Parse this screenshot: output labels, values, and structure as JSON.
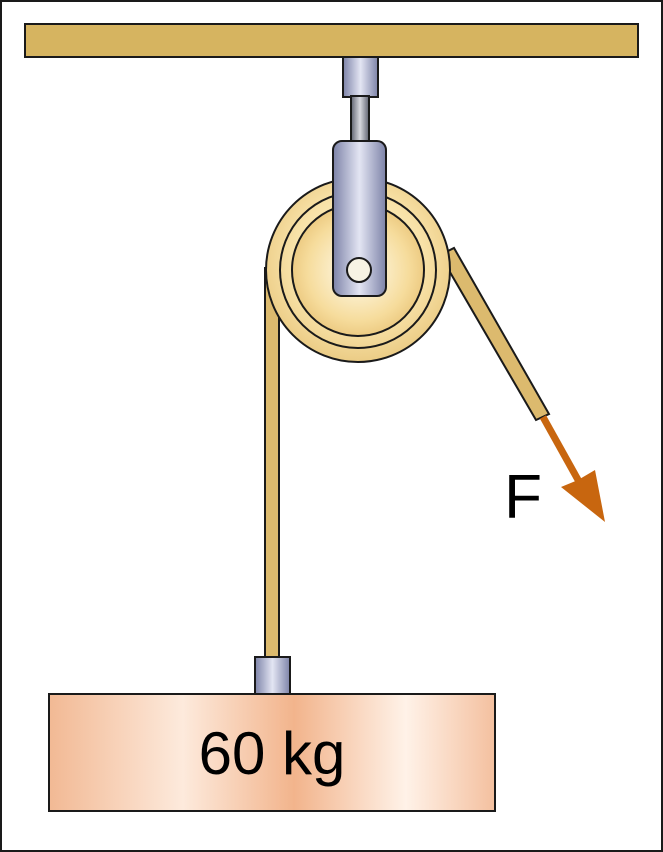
{
  "diagram": {
    "force_label": "F",
    "mass_label": "60 kg"
  },
  "colors": {
    "border": "#1a1a1a",
    "ceiling": "#d6b460",
    "rope": "#dcba6e",
    "pulley_outer": "#f3dba0",
    "pulley_inner": "#fff4cf",
    "bracket": "#8f95b8",
    "bracket_light": "#d9dcee",
    "arrow": "#c8660f",
    "mass_light": "#fff3ea",
    "mass_dark": "#f0b58f"
  }
}
